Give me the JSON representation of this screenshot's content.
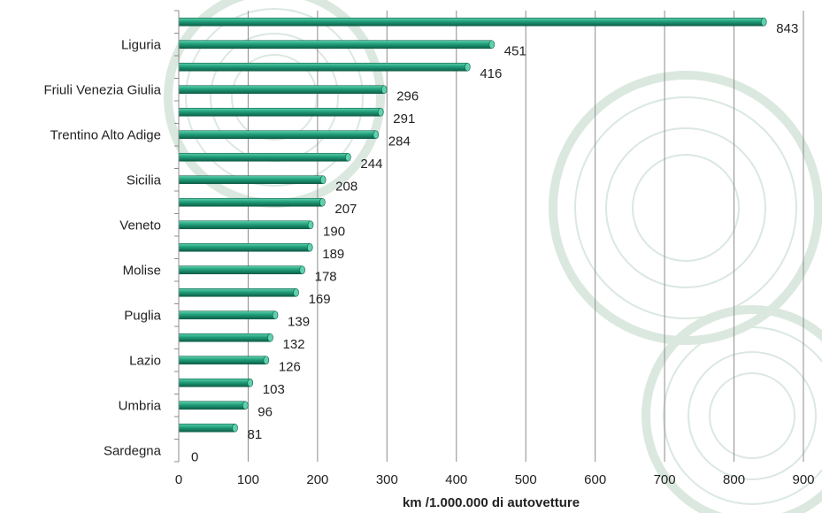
{
  "colors": {
    "bar_fill": "#1f9e7a",
    "bar_light": "#5fd1ad",
    "bar_dark": "#0e5e47",
    "gridline": "#8c8c8c",
    "watermark": "#dbe8e0"
  },
  "chart_data": {
    "type": "bar",
    "orientation": "horizontal",
    "title": "",
    "xlabel": "km /1.000.000 di autovetture",
    "ylabel": "",
    "xlim": [
      0,
      900
    ],
    "xticks": [
      "0",
      "100",
      "200",
      "300",
      "400",
      "500",
      "600",
      "700",
      "800",
      "900"
    ],
    "grid": true,
    "legend": "none",
    "categories": [
      "",
      "Liguria",
      "",
      "Friuli Venezia Giulia",
      "",
      "Trentino Alto Adige",
      "",
      "Sicilia",
      "",
      "Veneto",
      "",
      "Molise",
      "",
      "Puglia",
      "",
      "Lazio",
      "",
      "Umbria",
      "",
      "Sardegna"
    ],
    "values": [
      843,
      451,
      416,
      296,
      291,
      284,
      244,
      208,
      207,
      190,
      189,
      178,
      169,
      139,
      132,
      126,
      103,
      96,
      81,
      0
    ],
    "value_labels": [
      "843",
      "451",
      "416",
      "296",
      "291",
      "284",
      "244",
      "208",
      "207",
      "190",
      "189",
      "178",
      "169",
      "139",
      "132",
      "126",
      "103",
      "96",
      "81",
      "0"
    ]
  }
}
